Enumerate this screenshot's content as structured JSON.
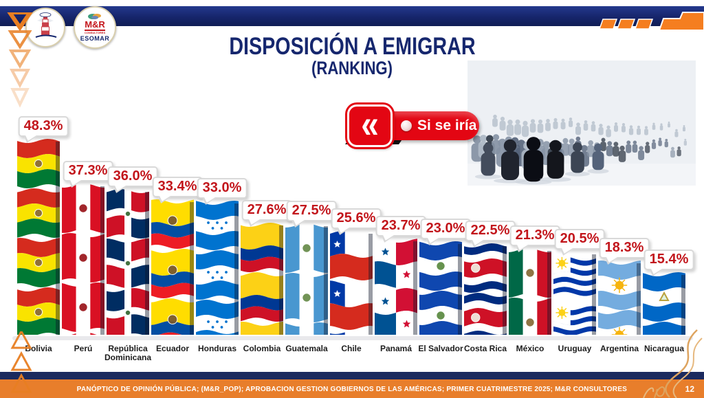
{
  "slide": {
    "title_line1": "DISPOSICIÓN A EMIGRAR",
    "title_line2": "(RANKING)",
    "badge_label": "Si se iría",
    "logo_mr": {
      "line1": "M&R",
      "line2": "CONSULTORES",
      "line3": "ESOMAR"
    },
    "footer_source": "PANÓPTICO DE OPINIÓN PÚBLICA; (M&R_POP); APROBACION GESTION GOBIERNOS DE LAS AMÉRICAS; PRIMER CUATRIMESTRE 2025; M&R CONSULTORES",
    "page_number": "12"
  },
  "icons": {
    "badge_chevron_glyph": "«",
    "badge_chevron_name": "chevron-double-left-icon",
    "lighthouse_logo": "lighthouse-logo",
    "migrants_image": "migrants-silhouette-image",
    "left_triangles": "triangle-decoration-down",
    "bottom_triangles": "triangle-decoration-up"
  },
  "colors": {
    "navy": "#16276e",
    "accent_red": "#c2151b",
    "badge_red": "#e30613",
    "orange": "#e87e2b",
    "corner_orange": "#f57e20",
    "footer_navy": "#1b2a5e",
    "bubble_border": "#d9d9d9"
  },
  "chart_data": {
    "type": "bar",
    "title": "DISPOSICIÓN A EMIGRAR (RANKING)",
    "subtitle_badge": "Si se iría",
    "unit": "percent",
    "bar_style": "stacked-waving-flags",
    "ylim": [
      0,
      50
    ],
    "grid": false,
    "legend": false,
    "categories": [
      "Bolivia",
      "Perú",
      "República Dominicana",
      "Ecuador",
      "Honduras",
      "Colombia",
      "Guatemala",
      "Chile",
      "Panamá",
      "El Salvador",
      "Costa Rica",
      "México",
      "Uruguay",
      "Argentina",
      "Nicaragua"
    ],
    "values": [
      48.3,
      37.3,
      36.0,
      33.4,
      33.0,
      27.6,
      27.5,
      25.6,
      23.7,
      23.0,
      22.5,
      21.3,
      20.5,
      18.3,
      15.4
    ],
    "value_labels": [
      "48.3%",
      "37.3%",
      "36.0%",
      "33.4%",
      "33.0%",
      "27.6%",
      "27.5%",
      "25.6%",
      "23.7%",
      "23.0%",
      "22.5%",
      "21.3%",
      "20.5%",
      "18.3%",
      "15.4%"
    ],
    "flags": [
      {
        "country": "Bolivia",
        "type": "h",
        "stripes": [
          [
            "#d52b1e",
            1
          ],
          [
            "#f9e300",
            1
          ],
          [
            "#007934",
            1
          ]
        ],
        "emblem": {
          "shape": "circle",
          "color": "#8a6d3b",
          "cx": 0.5,
          "cy": 0.5,
          "r": 0.09
        }
      },
      {
        "country": "Perú",
        "type": "v",
        "stripes": [
          [
            "#d91023",
            1
          ],
          [
            "#ffffff",
            1
          ],
          [
            "#d91023",
            1
          ]
        ],
        "emblem": {
          "shape": "circle",
          "color": "#9c1b20",
          "cx": 0.5,
          "cy": 0.5,
          "r": 0.1
        }
      },
      {
        "country": "República Dominicana",
        "type": "dr",
        "blue": "#002d62",
        "red": "#ce1126",
        "cross": "#ffffff",
        "emblem": {
          "shape": "circle",
          "color": "#3a6b35",
          "cx": 0.5,
          "cy": 0.5,
          "r": 0.06
        }
      },
      {
        "country": "Ecuador",
        "type": "h",
        "stripes": [
          [
            "#ffdd00",
            2
          ],
          [
            "#034ea2",
            1
          ],
          [
            "#ed1c24",
            1
          ]
        ],
        "emblem": {
          "shape": "circle",
          "color": "#7a5a2f",
          "cx": 0.5,
          "cy": 0.42,
          "r": 0.11
        }
      },
      {
        "country": "Honduras",
        "type": "h",
        "stripes": [
          [
            "#0073cf",
            1
          ],
          [
            "#ffffff",
            1
          ],
          [
            "#0073cf",
            1
          ]
        ],
        "emblem": {
          "shape": "stars5",
          "color": "#0073cf"
        }
      },
      {
        "country": "Colombia",
        "type": "h",
        "stripes": [
          [
            "#fcd116",
            2
          ],
          [
            "#003893",
            1
          ],
          [
            "#ce1126",
            1
          ]
        ]
      },
      {
        "country": "Guatemala",
        "type": "v",
        "stripes": [
          [
            "#4997d0",
            1
          ],
          [
            "#ffffff",
            1
          ],
          [
            "#4997d0",
            1
          ]
        ],
        "emblem": {
          "shape": "circle",
          "color": "#6b8e4e",
          "cx": 0.5,
          "cy": 0.5,
          "r": 0.1
        }
      },
      {
        "country": "Chile",
        "type": "chile",
        "blue": "#0039a6",
        "red": "#d52b1e",
        "white": "#ffffff"
      },
      {
        "country": "Panamá",
        "type": "panama",
        "blue": "#005293",
        "red": "#d21034",
        "white": "#ffffff"
      },
      {
        "country": "El Salvador",
        "type": "h",
        "stripes": [
          [
            "#0f47af",
            1
          ],
          [
            "#ffffff",
            1
          ],
          [
            "#0f47af",
            1
          ]
        ],
        "emblem": {
          "shape": "circle",
          "color": "#5e8d45",
          "cx": 0.5,
          "cy": 0.5,
          "r": 0.1
        }
      },
      {
        "country": "Costa Rica",
        "type": "h",
        "stripes": [
          [
            "#002b7f",
            1
          ],
          [
            "#ffffff",
            1
          ],
          [
            "#ce1126",
            2
          ],
          [
            "#ffffff",
            1
          ],
          [
            "#002b7f",
            1
          ]
        ],
        "emblem": {
          "shape": "circle",
          "color": "#efe9dd",
          "cx": 0.27,
          "cy": 0.5,
          "r": 0.1
        }
      },
      {
        "country": "México",
        "type": "v",
        "stripes": [
          [
            "#006847",
            1
          ],
          [
            "#ffffff",
            1
          ],
          [
            "#ce1126",
            1
          ]
        ],
        "emblem": {
          "shape": "circle",
          "color": "#8a6d3b",
          "cx": 0.5,
          "cy": 0.5,
          "r": 0.1
        }
      },
      {
        "country": "Uruguay",
        "type": "uruguay",
        "blue": "#0038a8",
        "white": "#ffffff",
        "sun": "#fcd116"
      },
      {
        "country": "Argentina",
        "type": "h",
        "stripes": [
          [
            "#74acdf",
            1
          ],
          [
            "#ffffff",
            1
          ],
          [
            "#74acdf",
            1
          ]
        ],
        "emblem": {
          "shape": "sun",
          "color": "#f6b40e",
          "cx": 0.5,
          "cy": 0.5,
          "r": 0.1
        }
      },
      {
        "country": "Nicaragua",
        "type": "h",
        "stripes": [
          [
            "#0067c6",
            1
          ],
          [
            "#ffffff",
            1
          ],
          [
            "#0067c6",
            1
          ]
        ],
        "emblem": {
          "shape": "triangle",
          "color": "#b9a13c",
          "cx": 0.5,
          "cy": 0.5,
          "r": 0.1
        }
      }
    ]
  }
}
